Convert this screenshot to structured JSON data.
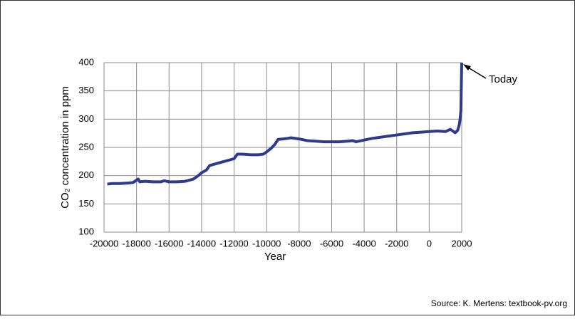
{
  "chart_data": {
    "type": "line",
    "ylabel": "CO₂ concentration in ppm",
    "xlabel": "Year",
    "annotation": "Today",
    "source": "Source: K. Mertens: textbook-pv.org",
    "xlim": [
      -20000,
      2000
    ],
    "xticks": [
      -20000,
      -18000,
      -16000,
      -14000,
      -12000,
      -10000,
      -8000,
      -6000,
      -4000,
      -2000,
      0,
      2000
    ],
    "ylim": [
      100,
      400
    ],
    "yticks": [
      100,
      150,
      200,
      250,
      300,
      350,
      400
    ],
    "grid": true,
    "series": [
      {
        "color": "#2e3a8c",
        "x": [
          -19800,
          -19500,
          -19000,
          -18500,
          -18200,
          -17900,
          -17800,
          -17500,
          -17000,
          -16500,
          -16300,
          -16000,
          -15500,
          -15000,
          -14500,
          -14200,
          -14000,
          -13700,
          -13500,
          -13000,
          -12500,
          -12000,
          -11800,
          -11500,
          -11000,
          -10500,
          -10200,
          -10000,
          -9700,
          -9500,
          -9300,
          -9000,
          -8700,
          -8500,
          -8000,
          -7500,
          -7000,
          -6500,
          -6000,
          -5500,
          -5000,
          -4700,
          -4500,
          -4000,
          -3500,
          -3000,
          -2500,
          -2000,
          -1500,
          -1000,
          -500,
          0,
          500,
          1000,
          1300,
          1600,
          1750,
          1850,
          1900,
          1950,
          2000
        ],
        "values": [
          185,
          186,
          186,
          187,
          188,
          194,
          189,
          190,
          189,
          189,
          191,
          189,
          189,
          190,
          194,
          200,
          205,
          210,
          218,
          222,
          226,
          230,
          238,
          238,
          237,
          237,
          238,
          242,
          249,
          255,
          264,
          265,
          266,
          267,
          265,
          262,
          261,
          260,
          260,
          260,
          261,
          262,
          260,
          263,
          266,
          268,
          270,
          272,
          274,
          276,
          277,
          278,
          279,
          278,
          282,
          276,
          280,
          290,
          300,
          315,
          400
        ]
      }
    ]
  }
}
